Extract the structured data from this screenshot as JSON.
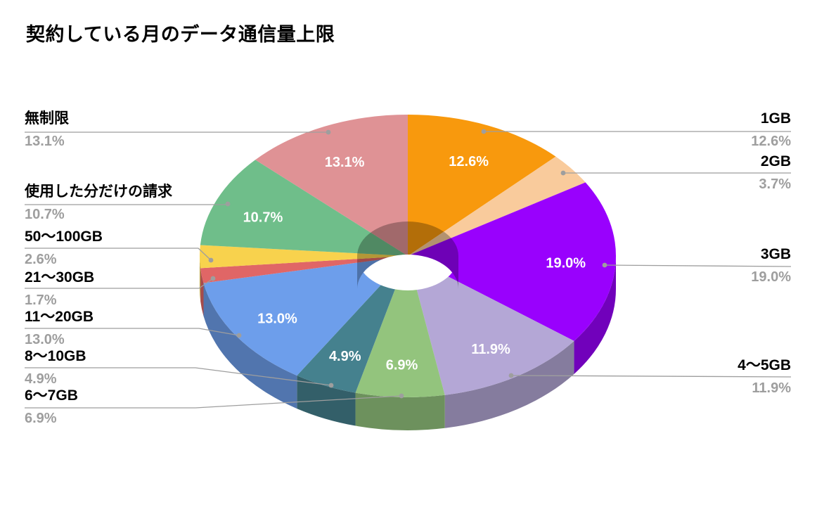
{
  "title": "契約している月のデータ通信量上限",
  "chart_data": {
    "type": "pie",
    "subtype": "3d-donut",
    "title": "契約している月のデータ通信量上限",
    "unit": "%",
    "direction": "clockwise",
    "start_angle": "top",
    "legend_position": "callout-labels",
    "background": "#FFFFFF",
    "slices": [
      {
        "label": "1GB",
        "value": 12.6,
        "pct_text": "12.6%",
        "color": "#F8990D",
        "pct_on_slice": true,
        "callout_side": "right"
      },
      {
        "label": "2GB",
        "value": 3.7,
        "pct_text": "3.7%",
        "color": "#F9CB9C",
        "pct_on_slice": false,
        "callout_side": "right"
      },
      {
        "label": "3GB",
        "value": 19.0,
        "pct_text": "19.0%",
        "color": "#9901FD",
        "pct_on_slice": true,
        "callout_side": "right"
      },
      {
        "label": "4〜5GB",
        "value": 11.9,
        "pct_text": "11.9%",
        "color": "#B4A7D6",
        "pct_on_slice": true,
        "callout_side": "right"
      },
      {
        "label": "6〜7GB",
        "value": 6.9,
        "pct_text": "6.9%",
        "color": "#93C47D",
        "pct_on_slice": true,
        "callout_side": "left"
      },
      {
        "label": "8〜10GB",
        "value": 4.9,
        "pct_text": "4.9%",
        "color": "#45818E",
        "pct_on_slice": true,
        "callout_side": "left"
      },
      {
        "label": "11〜20GB",
        "value": 13.0,
        "pct_text": "13.0%",
        "color": "#6D9EEB",
        "pct_on_slice": true,
        "callout_side": "left"
      },
      {
        "label": "21〜30GB",
        "value": 1.7,
        "pct_text": "1.7%",
        "color": "#E06666",
        "pct_on_slice": false,
        "callout_side": "left"
      },
      {
        "label": "50〜100GB",
        "value": 2.6,
        "pct_text": "2.6%",
        "color": "#F8D24D",
        "pct_on_slice": false,
        "callout_side": "left"
      },
      {
        "label": "使用した分だけの請求",
        "value": 10.7,
        "pct_text": "10.7%",
        "color": "#6FBE8A",
        "pct_on_slice": true,
        "callout_side": "left"
      },
      {
        "label": "無制限",
        "value": 13.1,
        "pct_text": "13.1%",
        "color": "#DF9295",
        "pct_on_slice": true,
        "callout_side": "left"
      }
    ],
    "colors": {
      "callout_label_text": "#000000",
      "callout_percent_text": "#9E9E9E",
      "slice_percent_text": "#FFFFFF",
      "leader_line": "#9E9E9E"
    }
  }
}
